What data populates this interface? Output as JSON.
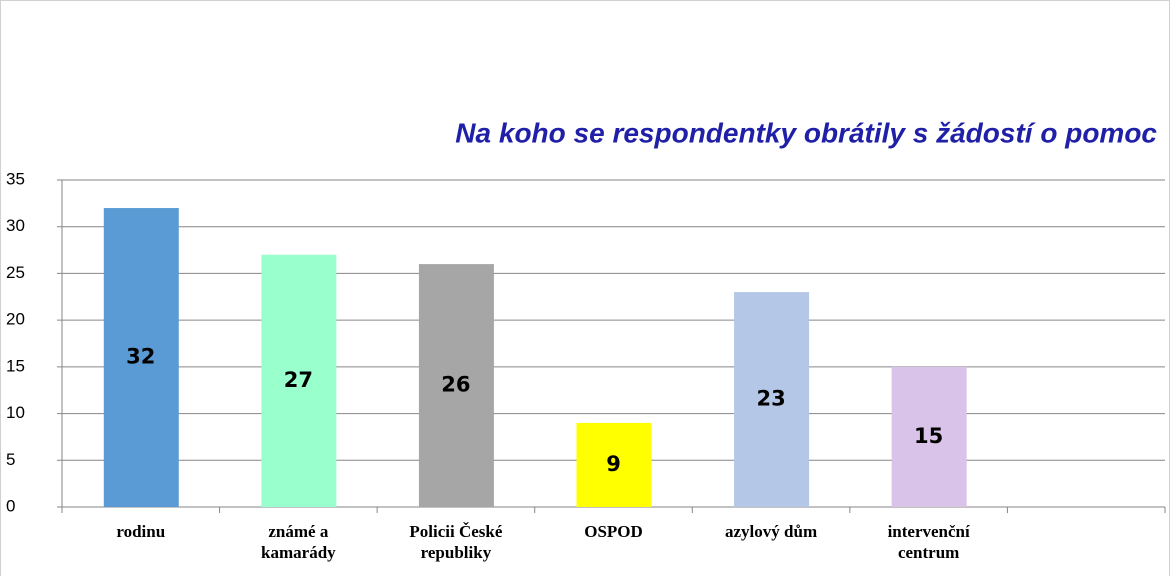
{
  "chart_data": {
    "type": "bar",
    "title": "Na koho se respondentky obrátily s žádostí o pomoc",
    "categories": [
      "rodinu",
      "známé a kamarády",
      "Policii České republiky",
      "OSPOD",
      "azylový dům",
      "intervenční centrum",
      null
    ],
    "values": [
      32,
      27,
      26,
      9,
      23,
      15,
      null
    ],
    "colors": [
      "#5b9bd5",
      "#99ffcc",
      "#a6a6a6",
      "#ffff00",
      "#b4c7e7",
      "#d9c3e9",
      null
    ],
    "ylim": [
      0,
      35
    ],
    "yticks": [
      0,
      5,
      10,
      15,
      20,
      25,
      30,
      35
    ],
    "grid": true
  }
}
